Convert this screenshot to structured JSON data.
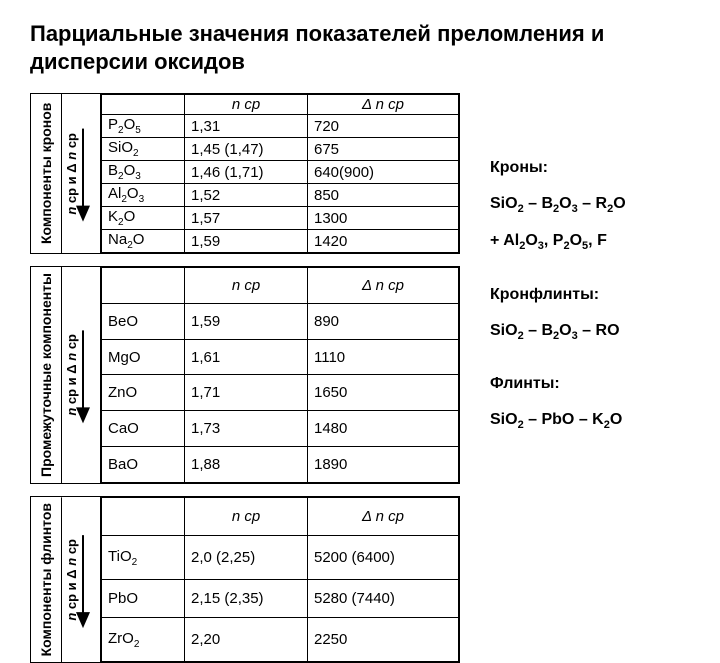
{
  "title": "Парциальные значения показателей преломления и дисперсии оксидов",
  "arrow_label_html": "<i>n</i> ср и Δ <i>n</i> ср",
  "header_n": "n ср",
  "header_dn": "Δ n ср",
  "tables": [
    {
      "caption": "Компоненты кронов",
      "rows": [
        {
          "f": "P<sub>2</sub>O<sub>5</sub>",
          "n": "1,31",
          "dn": "720"
        },
        {
          "f": "SiO<sub>2</sub>",
          "n": "1,45 (1,47)",
          "dn": "675"
        },
        {
          "f": "B<sub>2</sub>O<sub>3</sub>",
          "n": "1,46 (1,71)",
          "dn": "640(900)"
        },
        {
          "f": "Al<sub>2</sub>O<sub>3</sub>",
          "n": "1,52",
          "dn": "850"
        },
        {
          "f": "K<sub>2</sub>O",
          "n": "1,57",
          "dn": "1300"
        },
        {
          "f": "Na<sub>2</sub>O",
          "n": "1,59",
          "dn": "1420"
        }
      ]
    },
    {
      "caption": "Промежуточные компоненты",
      "rows": [
        {
          "f": "BeO",
          "n": "1,59",
          "dn": "890"
        },
        {
          "f": "MgO",
          "n": "1,61",
          "dn": "1110"
        },
        {
          "f": "ZnO",
          "n": "1,71",
          "dn": "1650"
        },
        {
          "f": "CaO",
          "n": "1,73",
          "dn": "1480"
        },
        {
          "f": "BaO",
          "n": "1,88",
          "dn": "1890"
        }
      ]
    },
    {
      "caption": "Компоненты флинтов",
      "rows": [
        {
          "f": "TiO<sub>2</sub>",
          "n": "2,0 (2,25)",
          "dn": "5200 (6400)"
        },
        {
          "f": "PbO",
          "n": "2,15 (2,35)",
          "dn": "5280 (7440)"
        },
        {
          "f": "ZrO<sub>2</sub>",
          "n": "2,20",
          "dn": "2250"
        }
      ]
    }
  ],
  "notes": [
    {
      "title": "Кроны:",
      "lines": [
        "SiO<sub>2</sub> – B<sub>2</sub>O<sub>3</sub> – R<sub>2</sub>O",
        "+ Al<sub>2</sub>O<sub>3</sub>, P<sub>2</sub>O<sub>5</sub>, F"
      ]
    },
    {
      "title": "Кронфлинты:",
      "lines": [
        "SiO<sub>2</sub> – B<sub>2</sub>O<sub>3</sub> – RO"
      ]
    },
    {
      "title": "Флинты:",
      "lines": [
        "SiO<sub>2</sub> – PbO – K<sub>2</sub>O"
      ]
    }
  ],
  "colors": {
    "text": "#000000",
    "background": "#ffffff",
    "border": "#000000"
  }
}
